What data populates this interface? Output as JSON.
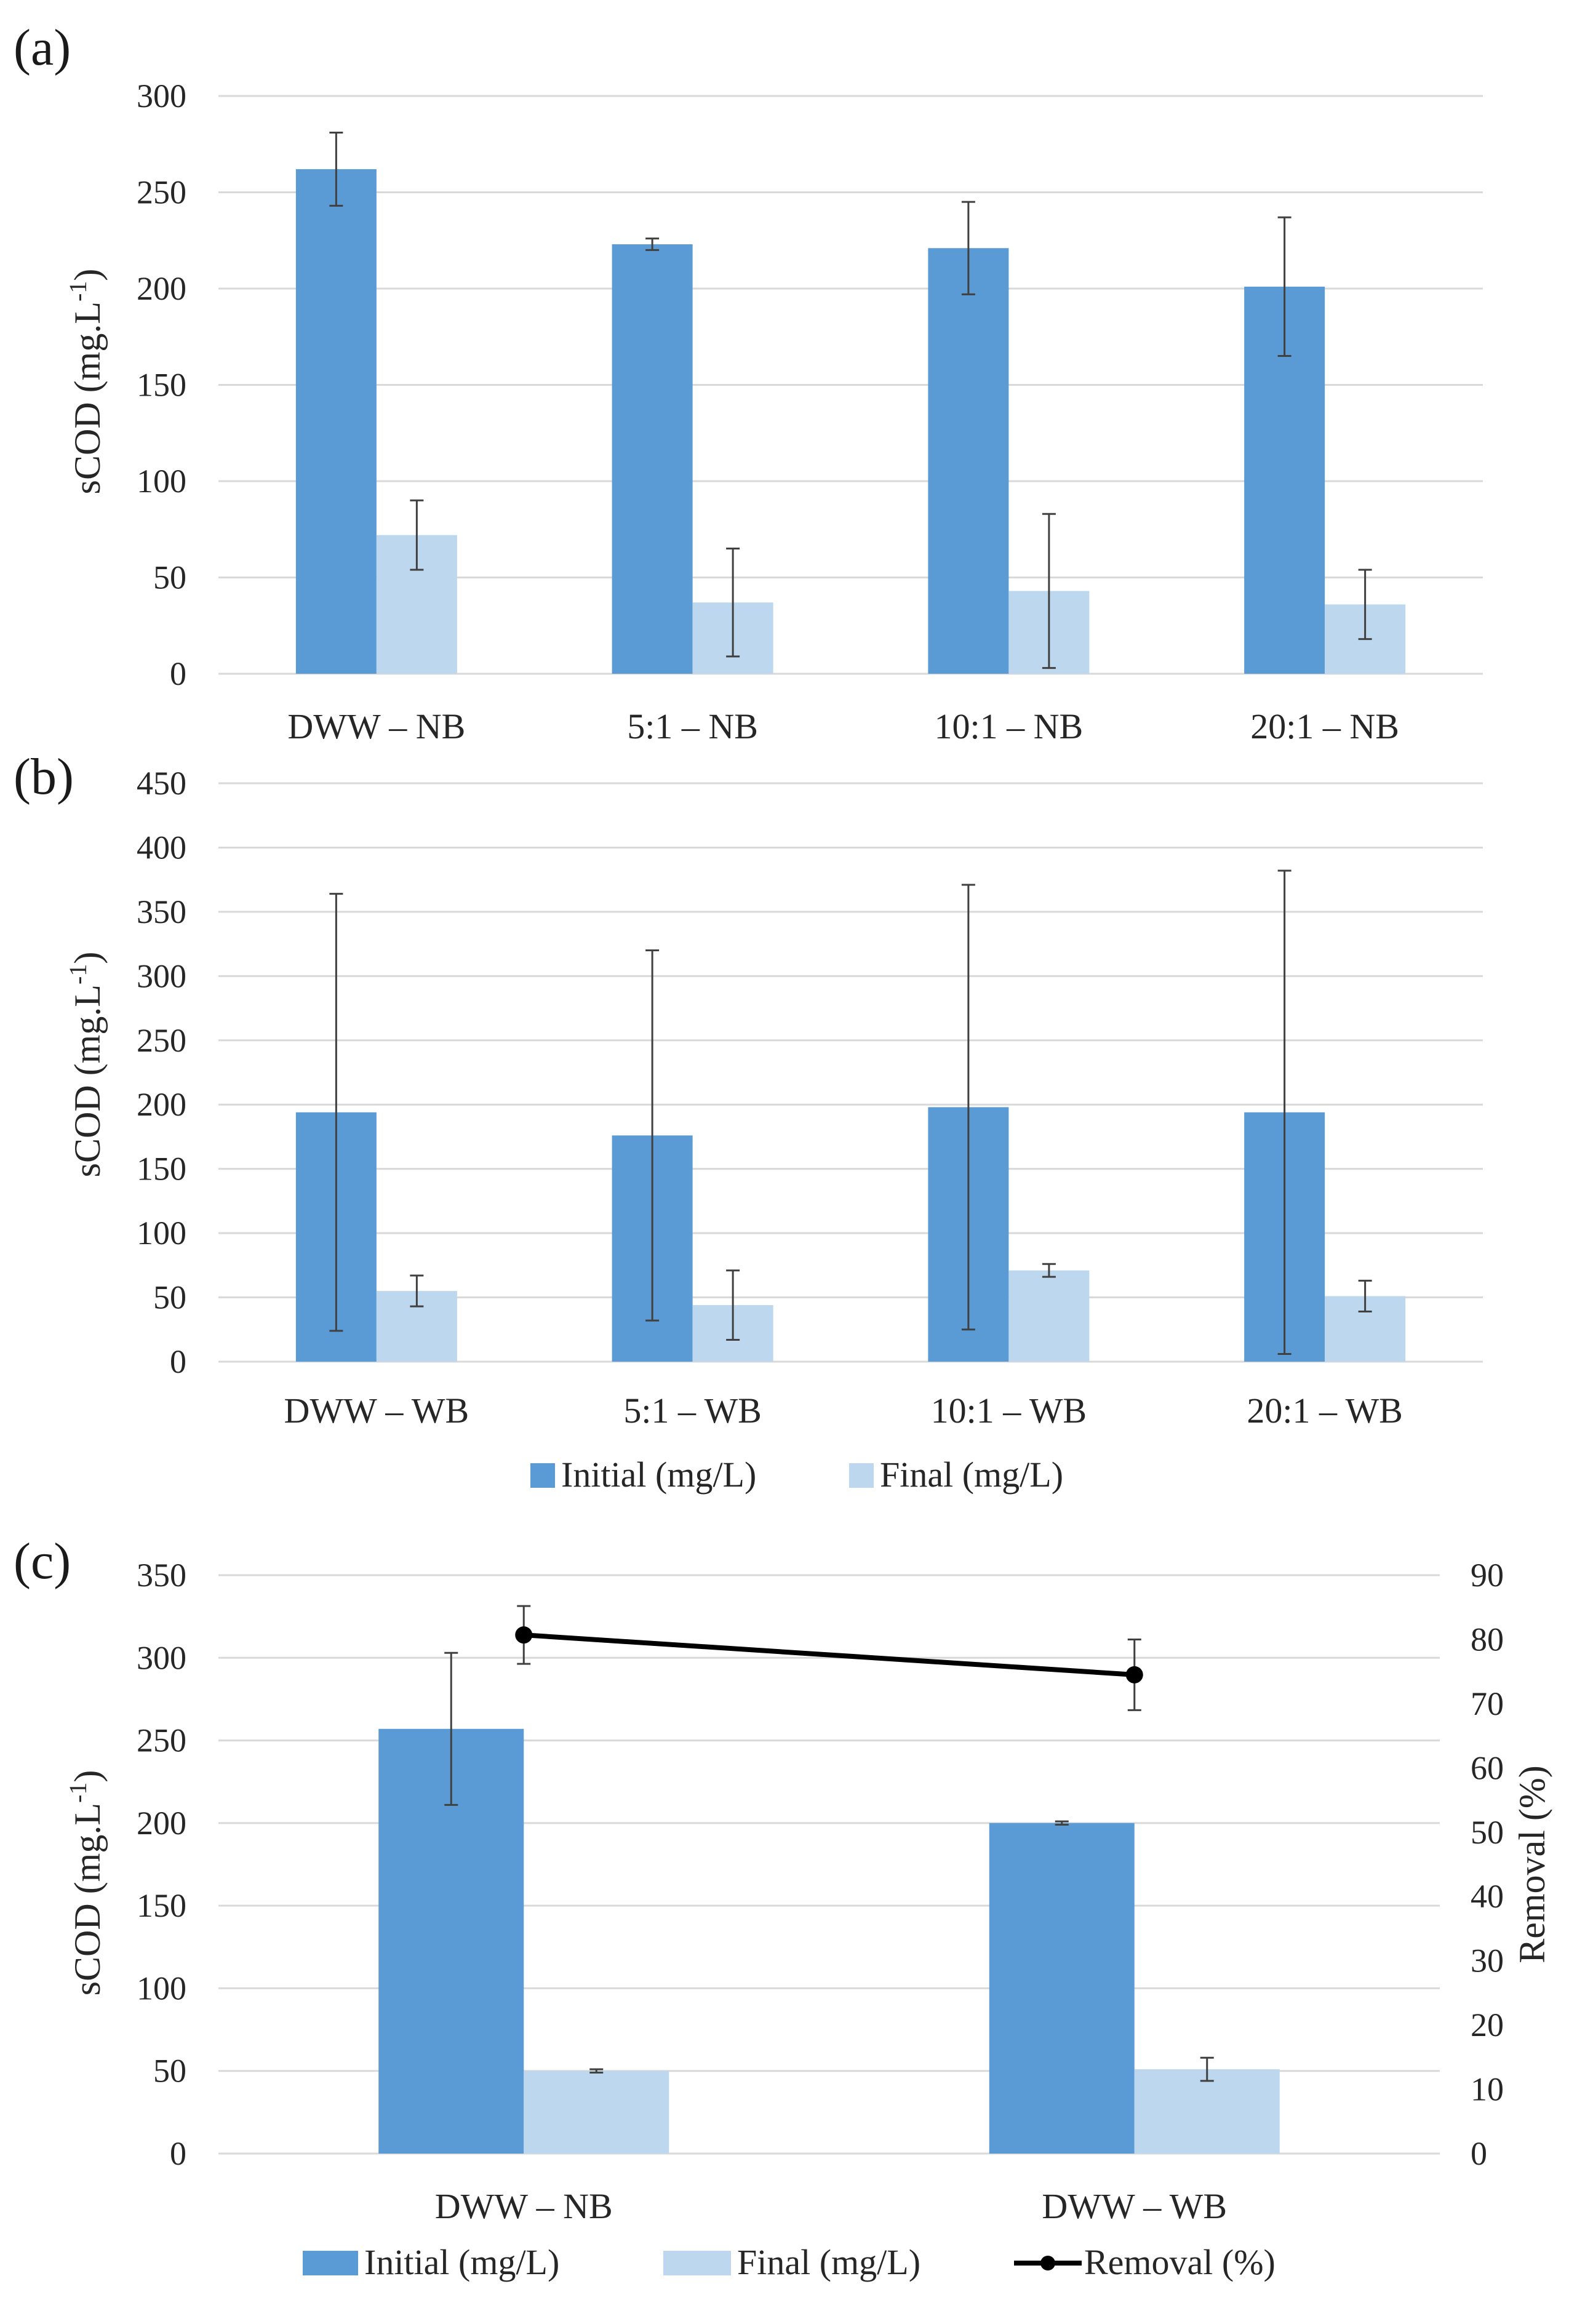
{
  "colors": {
    "initial": "#5b9bd5",
    "final": "#bdd7ee",
    "removal": "#000000",
    "grid": "#d9d9d9",
    "error": "#404040"
  },
  "legend_ab": {
    "initial": "Initial (mg/L)",
    "final": "Final (mg/L)"
  },
  "legend_c": {
    "initial": "Initial (mg/L)",
    "final": "Final (mg/L)",
    "removal": "Removal (%)"
  },
  "chart_data": [
    {
      "panel": "(a)",
      "type": "bar",
      "ylabel": "sCOD (mg.L-1)",
      "ylim": [
        0,
        300
      ],
      "ytick_step": 50,
      "yticks": [
        "0",
        "50",
        "100",
        "150",
        "200",
        "250",
        "300"
      ],
      "categories": [
        "DWW – NB",
        "5:1 – NB",
        "10:1 – NB",
        "20:1 – NB"
      ],
      "series": [
        {
          "name": "Initial (mg/L)",
          "values": [
            262,
            223,
            221,
            201
          ],
          "errors": [
            19,
            3,
            24,
            36
          ]
        },
        {
          "name": "Final (mg/L)",
          "values": [
            72,
            37,
            43,
            36
          ],
          "errors": [
            18,
            28,
            40,
            18
          ]
        }
      ]
    },
    {
      "panel": "(b)",
      "type": "bar",
      "ylabel": "sCOD (mg.L-1)",
      "ylim": [
        0,
        450
      ],
      "ytick_step": 50,
      "yticks": [
        "0",
        "50",
        "100",
        "150",
        "200",
        "250",
        "300",
        "350",
        "400",
        "450"
      ],
      "categories": [
        "DWW – WB",
        "5:1 – WB",
        "10:1 – WB",
        "20:1 – WB"
      ],
      "series": [
        {
          "name": "Initial (mg/L)",
          "values": [
            194,
            176,
            198,
            194
          ],
          "errors": [
            170,
            144,
            173,
            188
          ]
        },
        {
          "name": "Final (mg/L)",
          "values": [
            55,
            44,
            71,
            51
          ],
          "errors": [
            12,
            27,
            5,
            12
          ]
        }
      ]
    },
    {
      "panel": "(c)",
      "type": "bar",
      "ylabel": "sCOD (mg.L-1)",
      "ylabel2": "Removal (%)",
      "ylim": [
        0,
        350
      ],
      "ytick_step": 50,
      "yticks": [
        "0",
        "50",
        "100",
        "150",
        "200",
        "250",
        "300",
        "350"
      ],
      "ylim2": [
        0,
        90
      ],
      "ytick2_step": 10,
      "yticks2": [
        "0",
        "10",
        "20",
        "30",
        "40",
        "50",
        "60",
        "70",
        "80",
        "90"
      ],
      "categories": [
        "DWW – NB",
        "DWW – WB"
      ],
      "series": [
        {
          "name": "Initial (mg/L)",
          "values": [
            257,
            200
          ],
          "errors": [
            46,
            1
          ]
        },
        {
          "name": "Final (mg/L)",
          "values": [
            50,
            51
          ],
          "errors": [
            1,
            7
          ]
        }
      ],
      "line": {
        "name": "Removal (%)",
        "values": [
          80.7,
          74.5
        ],
        "errors": [
          4.5,
          5.5
        ]
      }
    }
  ]
}
